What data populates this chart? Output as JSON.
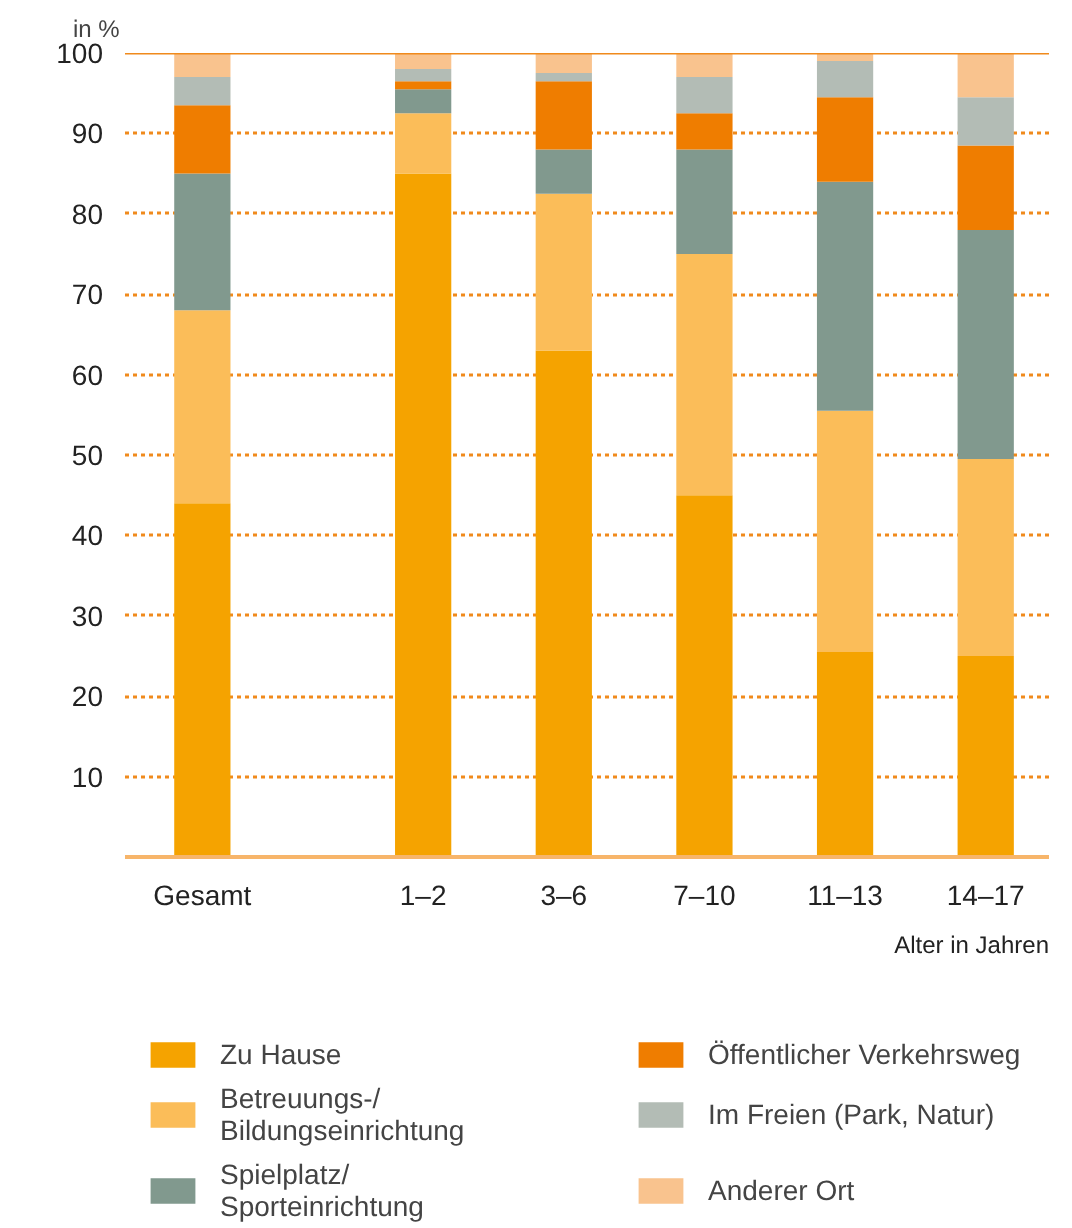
{
  "chart_data": {
    "type": "bar",
    "stacked": true,
    "ylabel": "in %",
    "xlabel": "Alter in Jahren",
    "categories": [
      "Gesamt",
      "1–2",
      "3–6",
      "7–10",
      "11–13",
      "14–17"
    ],
    "series": [
      {
        "name": "Zu Hause",
        "color": "#f5a300",
        "values": [
          44,
          85,
          63,
          45,
          25.5,
          25
        ]
      },
      {
        "name": "Betreuungs-/Bildungseinrichtung",
        "color": "#fbbd59",
        "values": [
          24,
          7.5,
          19.5,
          30,
          30,
          24.5
        ]
      },
      {
        "name": "Spielplatz/Sporteinrichtung",
        "color": "#81998e",
        "values": [
          17,
          3,
          5.5,
          13,
          28.5,
          28.5
        ]
      },
      {
        "name": "Öffentlicher Verkehrsweg",
        "color": "#ef7d00",
        "values": [
          8.5,
          1,
          8.5,
          4.5,
          10.5,
          10.5
        ]
      },
      {
        "name": "Im Freien (Park, Natur)",
        "color": "#b3bcb5",
        "values": [
          3.5,
          1.5,
          1,
          4.5,
          4.5,
          6
        ]
      },
      {
        "name": "Anderer Ort",
        "color": "#f9c38e",
        "values": [
          3,
          2,
          2.5,
          3,
          1,
          5.5
        ]
      }
    ],
    "ylim": [
      0,
      100
    ],
    "yticks": [
      10,
      20,
      30,
      40,
      50,
      60,
      70,
      80,
      90,
      100
    ],
    "grid": "y",
    "legend": "bottom"
  }
}
